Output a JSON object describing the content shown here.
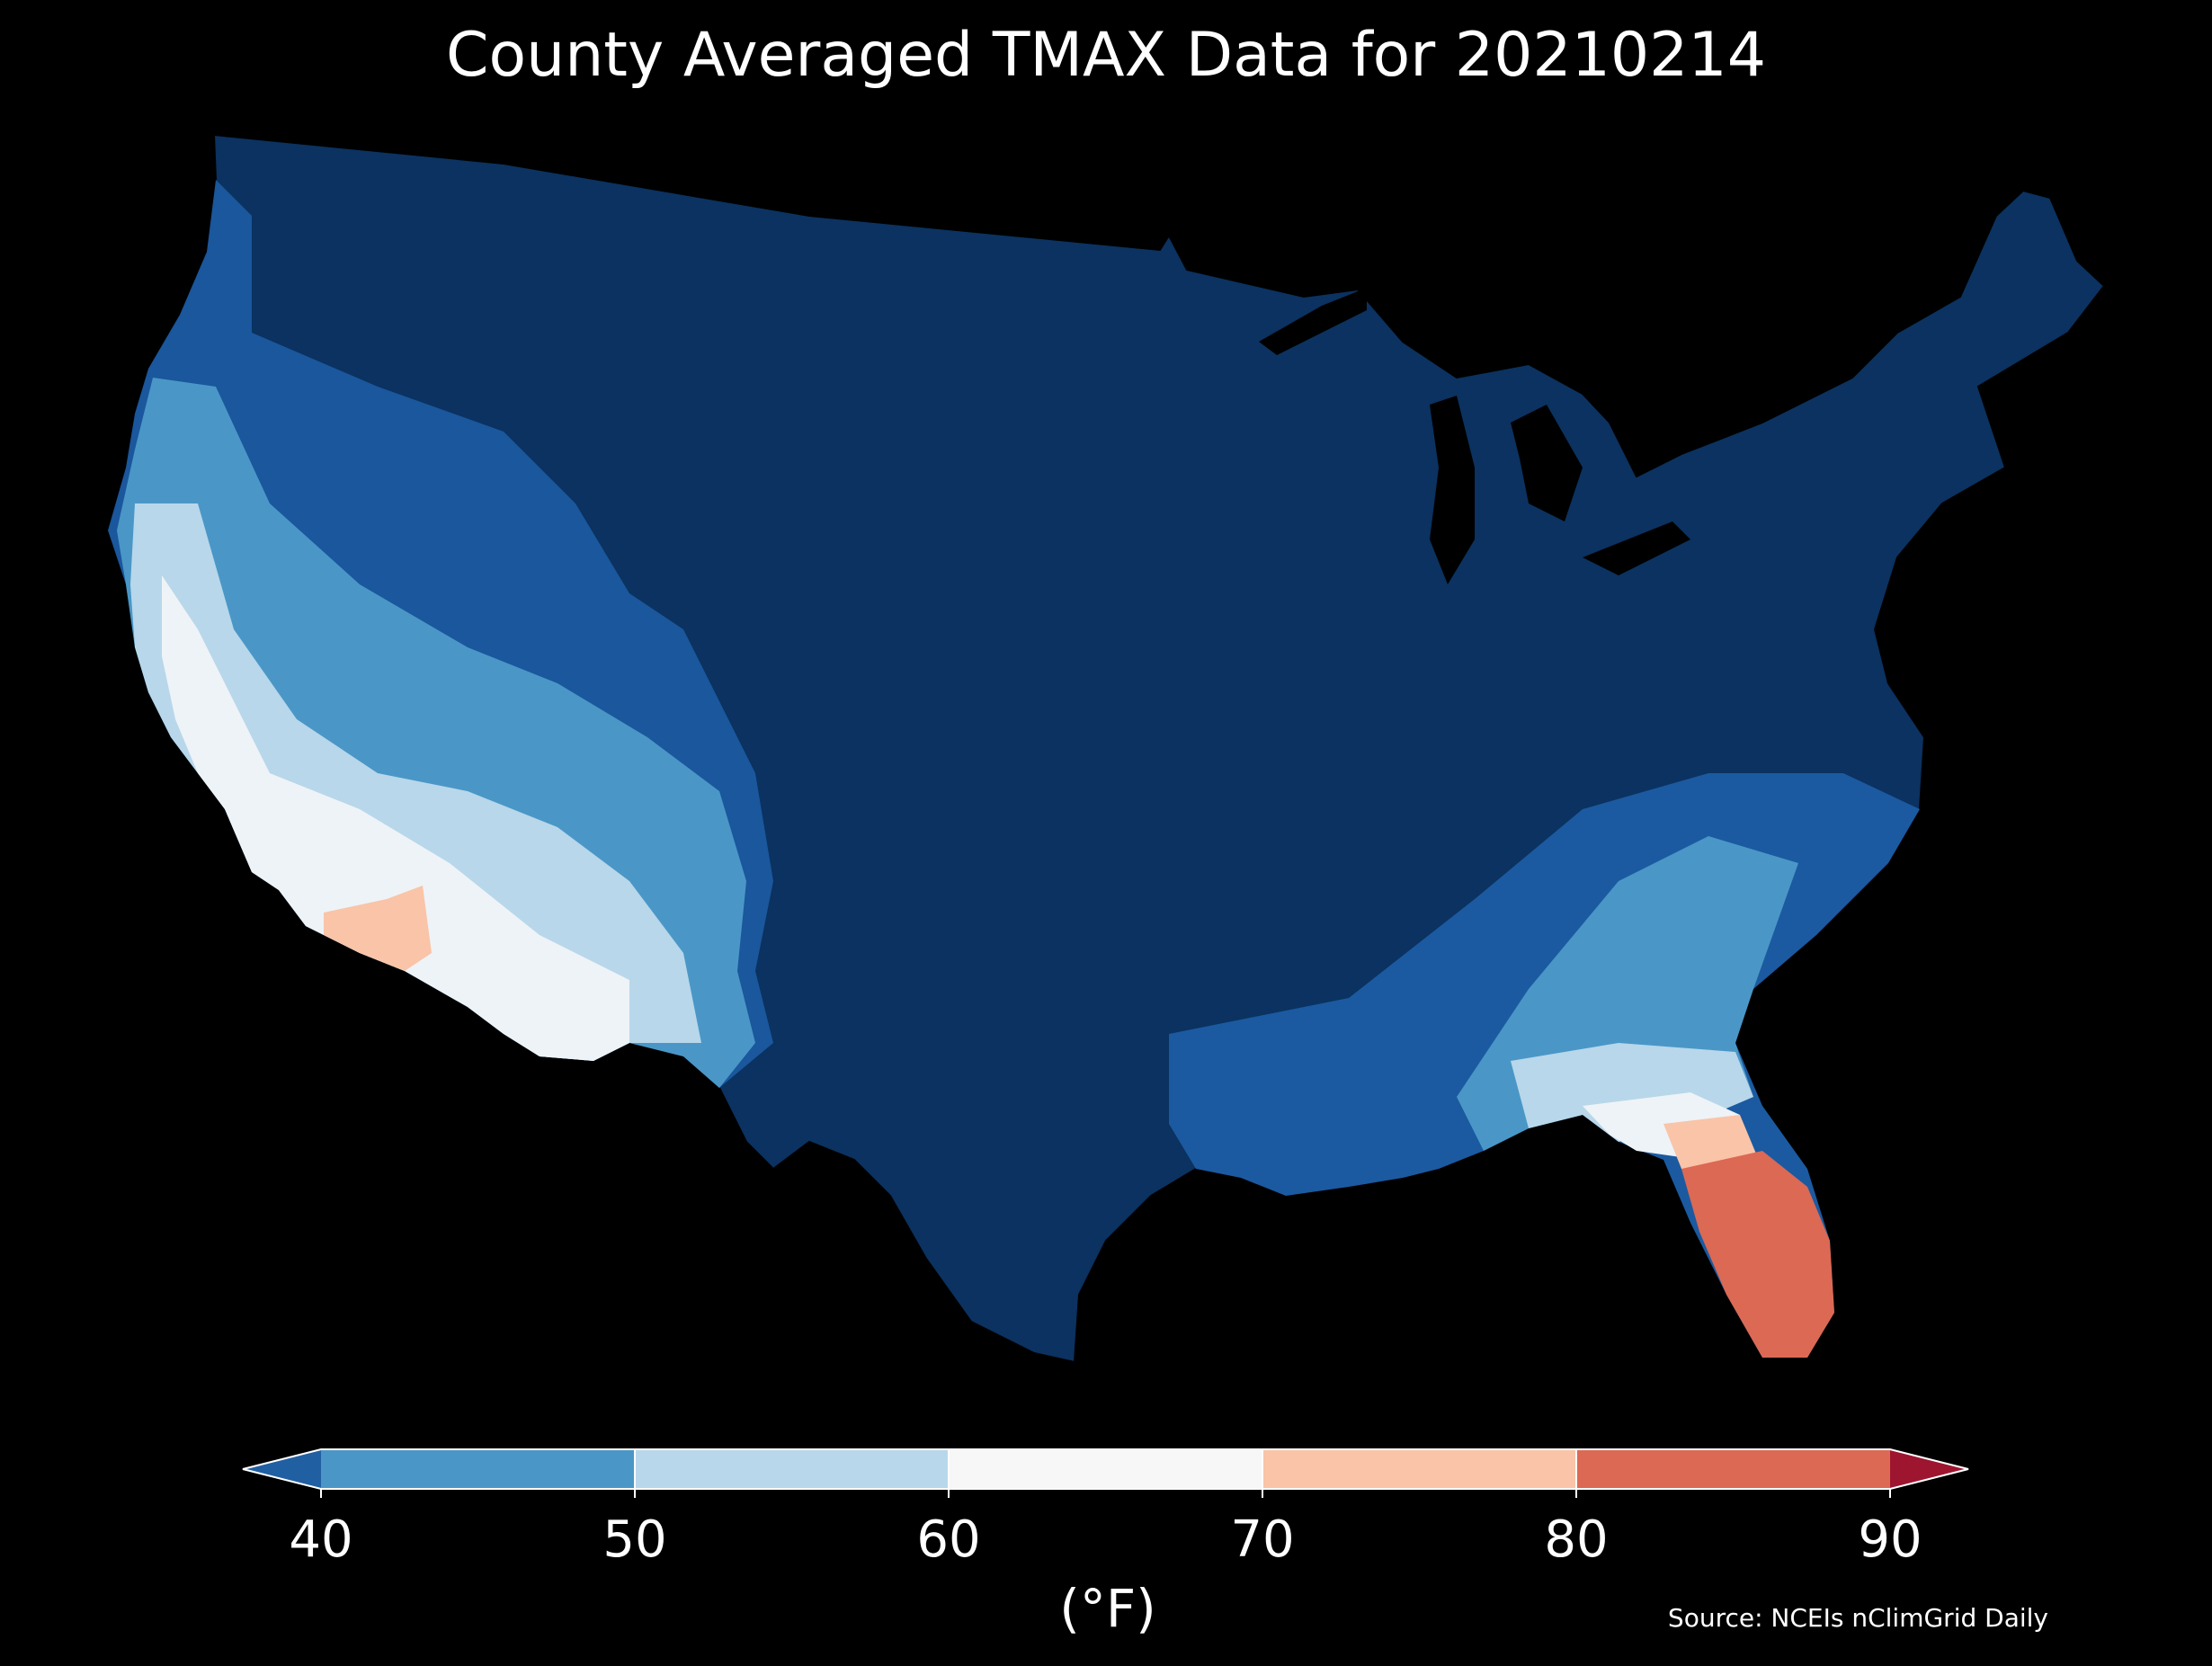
{
  "title": "County Averaged TMAX Data for 20210214",
  "colorbar": {
    "unit": "(°F)",
    "ticks": [
      "40",
      "50",
      "60",
      "70",
      "80",
      "90"
    ],
    "bins": [
      {
        "from": 40,
        "to": 50,
        "color": "#4a97c7"
      },
      {
        "from": 50,
        "to": 60,
        "color": "#b8d7ea"
      },
      {
        "from": 60,
        "to": 70,
        "color": "#f7f7f7"
      },
      {
        "from": 70,
        "to": 80,
        "color": "#f9c4a8"
      },
      {
        "from": 80,
        "to": 90,
        "color": "#dc6954"
      }
    ],
    "under_color": "#215fa3",
    "over_color": "#9e1530"
  },
  "source": "Source: NCEIs nClimGrid Daily",
  "map_colors": {
    "coldest": "#0b3260",
    "cold": "#1b5aa0",
    "cool": "#4a97c7",
    "mild": "#b8d7ea",
    "neutral": "#eef3f7",
    "warm": "#f9c4a8",
    "hot": "#dc6954"
  }
}
